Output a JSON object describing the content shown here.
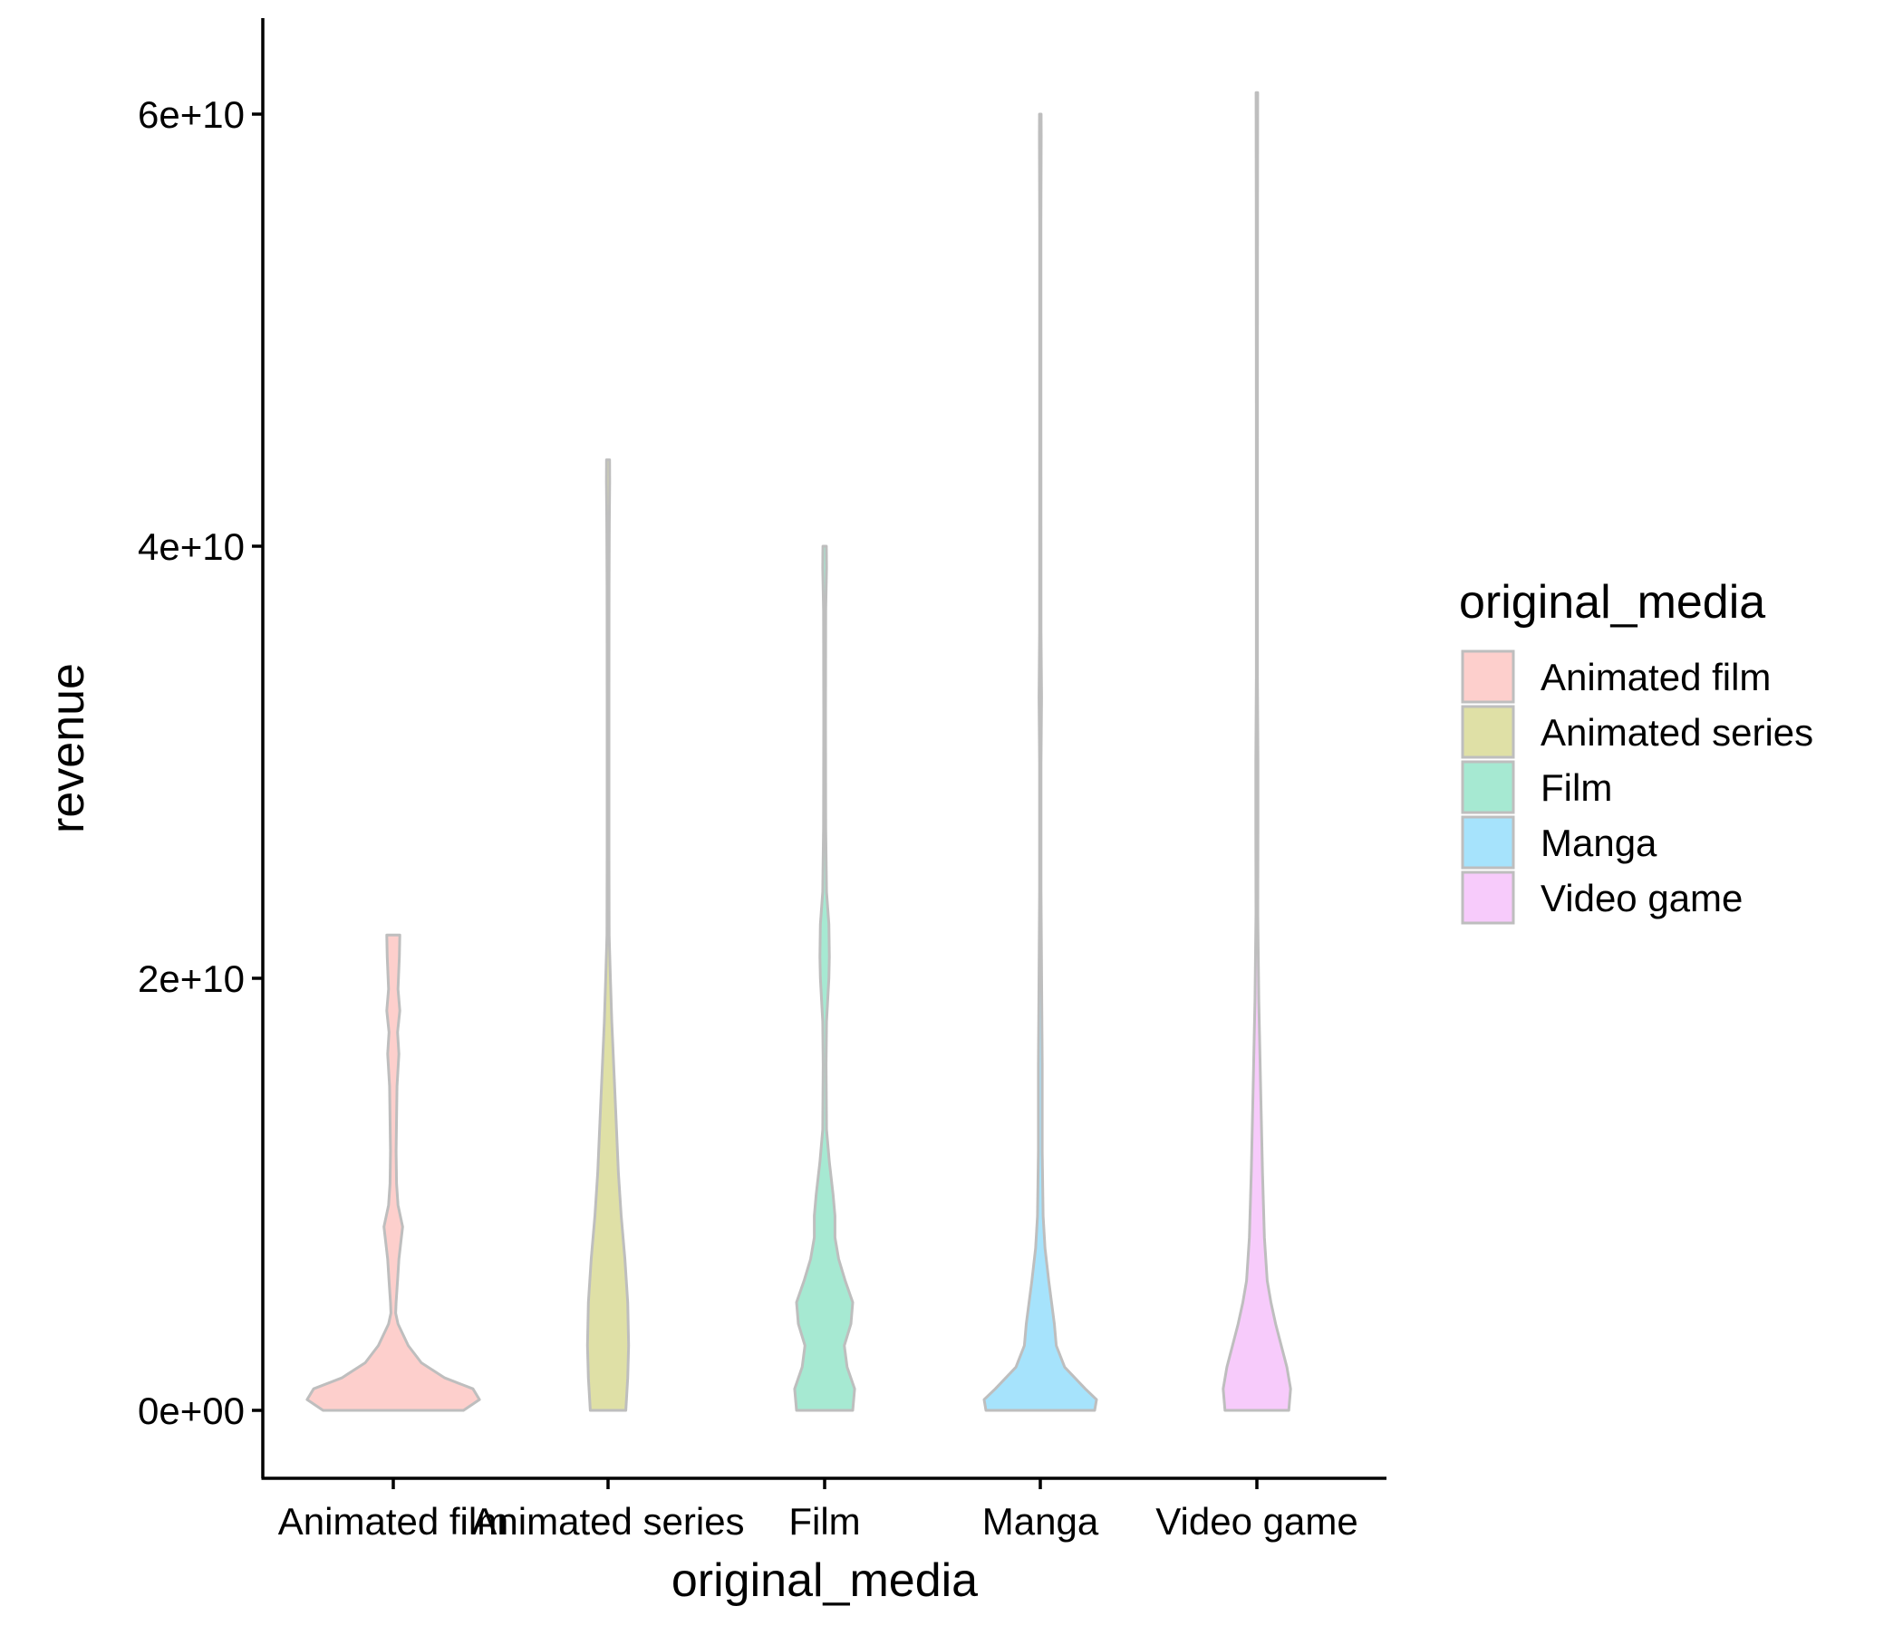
{
  "chart_data": {
    "type": "violin",
    "title": "",
    "xlabel": "original_media",
    "ylabel": "revenue",
    "ylim": [
      -3000000000,
      64000000000
    ],
    "y_ticks": [
      0,
      20000000000,
      40000000000,
      60000000000
    ],
    "y_tick_labels": [
      "0e+00",
      "2e+10",
      "4e+10",
      "6e+10"
    ],
    "categories": [
      "Animated film",
      "Animated series",
      "Film",
      "Manga",
      "Video game"
    ],
    "legend": {
      "title": "original_media",
      "position": "right",
      "items": [
        "Animated film",
        "Animated series",
        "Film",
        "Manga",
        "Video game"
      ]
    },
    "grid": false,
    "outline_color": "#BEBEBE",
    "series": [
      {
        "category": "Animated film",
        "color": "#F8766D",
        "max": 22000000000,
        "density_profile": [
          [
            0,
            0.75
          ],
          [
            500000000,
            0.92
          ],
          [
            1000000000,
            0.85
          ],
          [
            1500000000,
            0.55
          ],
          [
            2200000000,
            0.3
          ],
          [
            3000000000,
            0.16
          ],
          [
            4000000000,
            0.05
          ],
          [
            4500000000,
            0.025
          ],
          [
            5000000000,
            0.03
          ],
          [
            6000000000,
            0.045
          ],
          [
            7000000000,
            0.06
          ],
          [
            8500000000,
            0.1
          ],
          [
            9500000000,
            0.05
          ],
          [
            10500000000,
            0.035
          ],
          [
            12000000000,
            0.03
          ],
          [
            15000000000,
            0.04
          ],
          [
            16500000000,
            0.06
          ],
          [
            17500000000,
            0.045
          ],
          [
            18500000000,
            0.07
          ],
          [
            19500000000,
            0.05
          ],
          [
            21000000000,
            0.065
          ],
          [
            22000000000,
            0.07
          ]
        ]
      },
      {
        "category": "Animated series",
        "color": "#A3A500",
        "max": 44000000000,
        "density_profile": [
          [
            0,
            0.19
          ],
          [
            1500000000,
            0.21
          ],
          [
            3000000000,
            0.22
          ],
          [
            5000000000,
            0.21
          ],
          [
            7000000000,
            0.18
          ],
          [
            9000000000,
            0.14
          ],
          [
            11000000000,
            0.11
          ],
          [
            14000000000,
            0.08
          ],
          [
            16000000000,
            0.06
          ],
          [
            18000000000,
            0.04
          ],
          [
            20000000000,
            0.025
          ],
          [
            22000000000,
            0.012
          ],
          [
            26000000000,
            0.01
          ],
          [
            32000000000,
            0.01
          ],
          [
            38000000000,
            0.011
          ],
          [
            41000000000,
            0.014
          ],
          [
            43000000000,
            0.017
          ],
          [
            44000000000,
            0.016
          ]
        ]
      },
      {
        "category": "Film",
        "color": "#00BF7D",
        "max": 40000000000,
        "density_profile": [
          [
            0,
            0.3
          ],
          [
            1000000000,
            0.32
          ],
          [
            2000000000,
            0.24
          ],
          [
            3000000000,
            0.21
          ],
          [
            4000000000,
            0.28
          ],
          [
            5000000000,
            0.3
          ],
          [
            6000000000,
            0.22
          ],
          [
            7000000000,
            0.15
          ],
          [
            8000000000,
            0.11
          ],
          [
            9000000000,
            0.11
          ],
          [
            10000000000,
            0.09
          ],
          [
            11500000000,
            0.05
          ],
          [
            13000000000,
            0.02
          ],
          [
            16000000000,
            0.015
          ],
          [
            18000000000,
            0.02
          ],
          [
            20000000000,
            0.045
          ],
          [
            21000000000,
            0.05
          ],
          [
            22500000000,
            0.045
          ],
          [
            24000000000,
            0.02
          ],
          [
            27000000000,
            0.012
          ],
          [
            32000000000,
            0.01
          ],
          [
            37000000000,
            0.012
          ],
          [
            39000000000,
            0.02
          ],
          [
            40000000000,
            0.018
          ]
        ]
      },
      {
        "category": "Manga",
        "color": "#00B0F6",
        "max": 60000000000,
        "density_profile": [
          [
            0,
            0.58
          ],
          [
            500000000,
            0.6
          ],
          [
            1000000000,
            0.48
          ],
          [
            2000000000,
            0.26
          ],
          [
            3000000000,
            0.17
          ],
          [
            4000000000,
            0.15
          ],
          [
            5000000000,
            0.12
          ],
          [
            6000000000,
            0.09
          ],
          [
            7500000000,
            0.05
          ],
          [
            9000000000,
            0.03
          ],
          [
            12000000000,
            0.02
          ],
          [
            16000000000,
            0.02
          ],
          [
            19000000000,
            0.015
          ],
          [
            24000000000,
            0.008
          ],
          [
            30000000000,
            0.008
          ],
          [
            33000000000,
            0.014
          ],
          [
            36000000000,
            0.008
          ],
          [
            45000000000,
            0.007
          ],
          [
            55000000000,
            0.007
          ],
          [
            59000000000,
            0.01
          ],
          [
            60000000000,
            0.009
          ]
        ]
      },
      {
        "category": "Video game",
        "color": "#E76BF3",
        "max": 61000000000,
        "density_profile": [
          [
            0,
            0.34
          ],
          [
            1000000000,
            0.36
          ],
          [
            2000000000,
            0.32
          ],
          [
            3000000000,
            0.26
          ],
          [
            4000000000,
            0.2
          ],
          [
            5000000000,
            0.15
          ],
          [
            6000000000,
            0.11
          ],
          [
            8000000000,
            0.08
          ],
          [
            11000000000,
            0.06
          ],
          [
            15000000000,
            0.04
          ],
          [
            19000000000,
            0.02
          ],
          [
            23000000000,
            0.01
          ],
          [
            27000000000,
            0.012
          ],
          [
            30000000000,
            0.012
          ],
          [
            34000000000,
            0.006
          ],
          [
            45000000000,
            0.006
          ],
          [
            55000000000,
            0.007
          ],
          [
            61000000000,
            0.009
          ]
        ]
      }
    ]
  }
}
